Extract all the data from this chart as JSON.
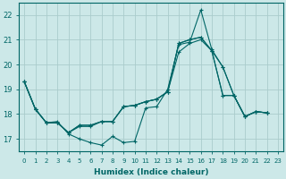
{
  "xlabel": "Humidex (Indice chaleur)",
  "background_color": "#cce8e8",
  "grid_color": "#aacccc",
  "line_color": "#006666",
  "xlim": [
    -0.5,
    23.5
  ],
  "ylim": [
    16.5,
    22.5
  ],
  "yticks": [
    17,
    18,
    19,
    20,
    21,
    22
  ],
  "xticks": [
    0,
    1,
    2,
    3,
    4,
    5,
    6,
    7,
    8,
    9,
    10,
    11,
    12,
    13,
    14,
    15,
    16,
    17,
    18,
    19,
    20,
    21,
    22,
    23
  ],
  "series": [
    [
      19.3,
      18.2,
      17.65,
      17.7,
      17.2,
      17.0,
      16.85,
      16.75,
      17.1,
      16.85,
      16.9,
      18.25,
      18.3,
      19.0,
      20.8,
      20.9,
      22.2,
      20.6,
      19.9,
      18.75,
      17.9,
      18.1,
      18.05
    ],
    [
      19.3,
      18.2,
      17.65,
      17.65,
      17.25,
      17.5,
      17.5,
      17.7,
      17.7,
      18.3,
      18.35,
      18.5,
      18.6,
      18.9,
      20.5,
      20.85,
      21.0,
      20.55,
      18.75,
      18.75,
      17.9,
      18.1,
      18.05
    ],
    [
      19.3,
      18.2,
      17.65,
      17.65,
      17.25,
      17.55,
      17.55,
      17.7,
      17.7,
      18.3,
      18.35,
      18.5,
      18.6,
      18.9,
      20.85,
      21.0,
      21.1,
      20.55,
      18.75,
      18.75,
      17.9,
      18.1,
      18.05
    ],
    [
      19.3,
      18.2,
      17.65,
      17.65,
      17.25,
      17.55,
      17.55,
      17.7,
      17.7,
      18.3,
      18.35,
      18.5,
      18.6,
      18.9,
      20.85,
      21.0,
      21.1,
      20.55,
      19.9,
      18.75,
      17.9,
      18.1,
      18.05
    ]
  ]
}
